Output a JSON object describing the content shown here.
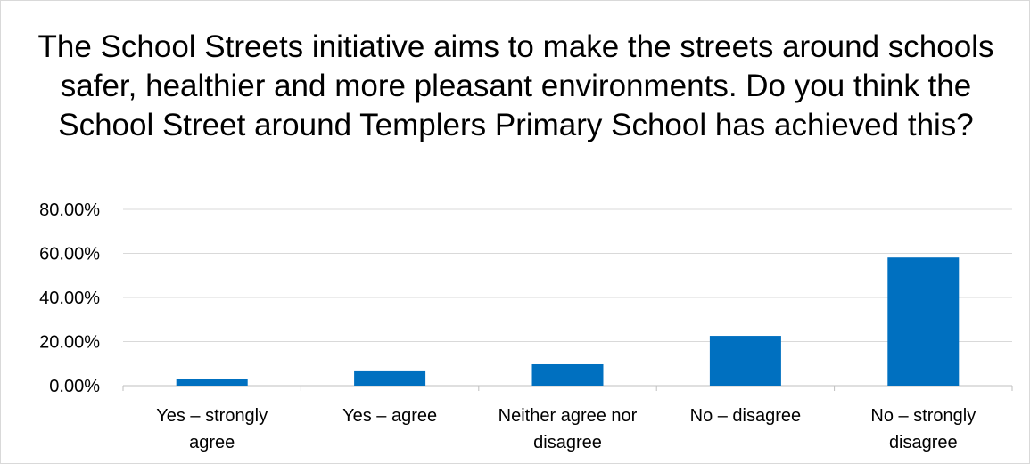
{
  "chart_data": {
    "type": "bar",
    "title": "The School Streets initiative aims to make the streets around schools safer, healthier and more pleasant environments. Do you think the School Street around Templers Primary School has achieved this?",
    "categories": [
      [
        "Yes – strongly",
        "agree"
      ],
      [
        "Yes – agree"
      ],
      [
        "Neither agree nor",
        "disagree"
      ],
      [
        "No – disagree"
      ],
      [
        "No – strongly",
        "disagree"
      ]
    ],
    "values": [
      3.2,
      6.5,
      9.7,
      22.6,
      58.1
    ],
    "ylim": [
      0,
      80
    ],
    "yticks": [
      "0.00%",
      "20.00%",
      "40.00%",
      "60.00%",
      "80.00%"
    ],
    "bar_color": "#0070c0",
    "grid": true,
    "legend": "none"
  }
}
